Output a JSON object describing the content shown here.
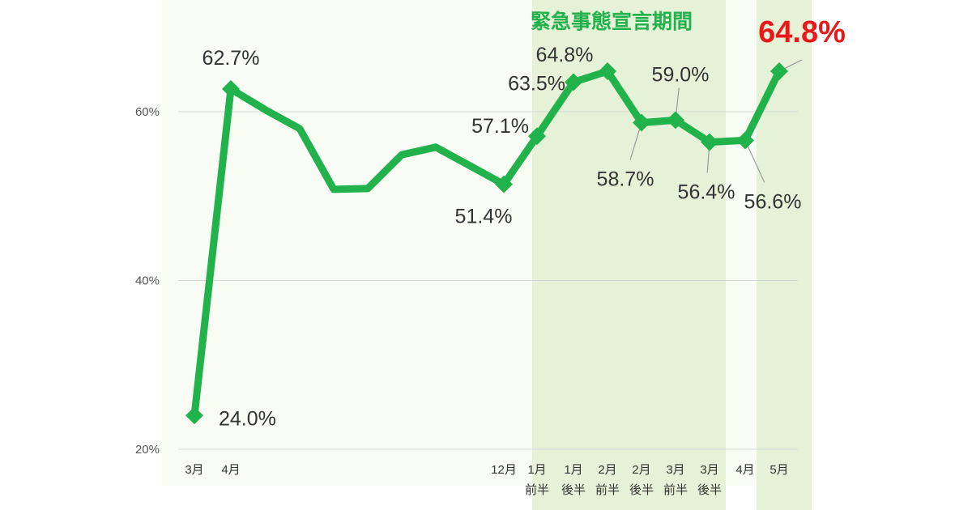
{
  "chart_data": {
    "type": "line",
    "ylim": [
      20,
      68
    ],
    "y_ticks": [
      {
        "value": 20,
        "label": "20%"
      },
      {
        "value": 40,
        "label": "40%"
      },
      {
        "value": 60,
        "label": "60%"
      }
    ],
    "grid": true,
    "series": [
      {
        "color": "#22b24c",
        "values": [
          24.0,
          62.7,
          60.2,
          58.0,
          50.8,
          50.9,
          54.9,
          55.8,
          53.6,
          51.4,
          57.1,
          63.5,
          64.8,
          58.7,
          59.0,
          56.4,
          56.6,
          64.8
        ]
      }
    ],
    "x_labels": [
      {
        "index": 0,
        "line1": "3月",
        "line2": ""
      },
      {
        "index": 1,
        "line1": "4月",
        "line2": ""
      },
      {
        "index": 9,
        "line1": "12月",
        "line2": ""
      },
      {
        "index": 10,
        "line1": "1月",
        "line2": "前半"
      },
      {
        "index": 11,
        "line1": "1月",
        "line2": "後半"
      },
      {
        "index": 12,
        "line1": "2月",
        "line2": "前半"
      },
      {
        "index": 13,
        "line1": "2月",
        "line2": "後半"
      },
      {
        "index": 14,
        "line1": "3月",
        "line2": "前半"
      },
      {
        "index": 15,
        "line1": "3月",
        "line2": "後半"
      },
      {
        "index": 16,
        "line1": "4月",
        "line2": ""
      },
      {
        "index": 17,
        "line1": "5月",
        "line2": ""
      }
    ],
    "data_labels": [
      {
        "index": 0,
        "text": "24.0%",
        "position": "right"
      },
      {
        "index": 1,
        "text": "62.7%",
        "position": "above"
      },
      {
        "index": 9,
        "text": "51.4%",
        "position": "below"
      },
      {
        "index": 10,
        "text": "57.1%",
        "position": "left"
      },
      {
        "index": 11,
        "text": "63.5%",
        "position": "left"
      },
      {
        "index": 12,
        "text": "64.8%",
        "position": "above"
      },
      {
        "index": 13,
        "text": "58.7%",
        "position": "below"
      },
      {
        "index": 14,
        "text": "59.0%",
        "position": "above"
      },
      {
        "index": 15,
        "text": "56.4%",
        "position": "below"
      },
      {
        "index": 16,
        "text": "56.6%",
        "position": "below"
      }
    ],
    "shaded_periods": [
      {
        "from_index": 10,
        "to_index": 15,
        "color": "#e6f2d8"
      },
      {
        "from_index": 17,
        "to_index": 17,
        "color": "#e6f2d8"
      }
    ],
    "shaded_period_label": "緊急事態宣言期間",
    "highlight": {
      "index": 17,
      "text": "64.8%",
      "color": "#e8191a"
    }
  }
}
